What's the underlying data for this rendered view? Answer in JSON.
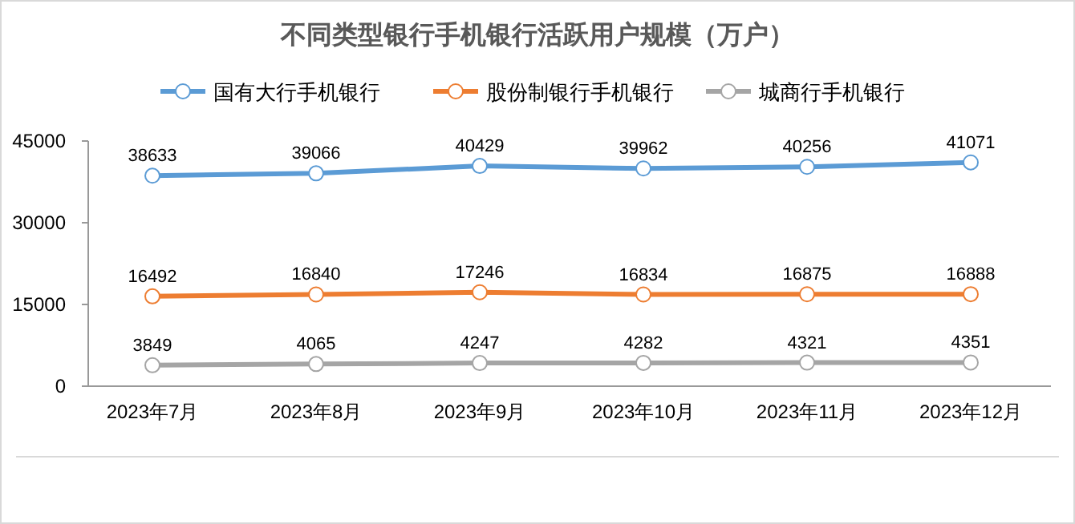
{
  "chart_data": {
    "type": "line",
    "title": "不同类型银行手机银行活跃用户规模（万户）",
    "categories": [
      "2023年7月",
      "2023年8月",
      "2023年9月",
      "2023年10月",
      "2023年11月",
      "2023年12月"
    ],
    "series": [
      {
        "name": "国有大行手机银行",
        "color": "#5b9bd5",
        "values": [
          38633,
          39066,
          40429,
          39962,
          40256,
          41071
        ]
      },
      {
        "name": "股份制银行手机银行",
        "color": "#ed7d31",
        "values": [
          16492,
          16840,
          17246,
          16834,
          16875,
          16888
        ]
      },
      {
        "name": "城商行手机银行",
        "color": "#a5a5a5",
        "values": [
          3849,
          4065,
          4247,
          4282,
          4321,
          4351
        ]
      }
    ],
    "ylim": [
      0,
      45000
    ],
    "yticks": [
      0,
      15000,
      30000,
      45000
    ],
    "grid": false,
    "legend": "top",
    "marker": "circle",
    "line_style": "solid",
    "data_labels": true
  }
}
